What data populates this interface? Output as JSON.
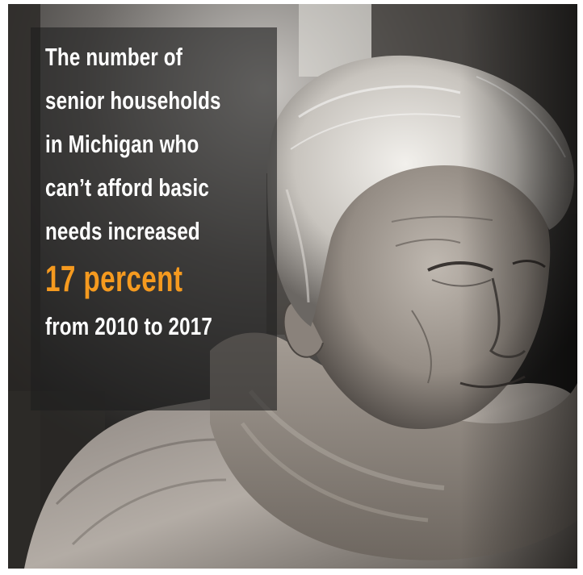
{
  "caption": {
    "lines": [
      "The number of",
      "senior households",
      "in Michigan who",
      "can’t afford basic",
      "needs increased"
    ],
    "highlight": "17 percent",
    "closing": "from 2010 to 2017"
  },
  "colors": {
    "accent": "#f59a1f",
    "caption_text": "#ffffff"
  }
}
